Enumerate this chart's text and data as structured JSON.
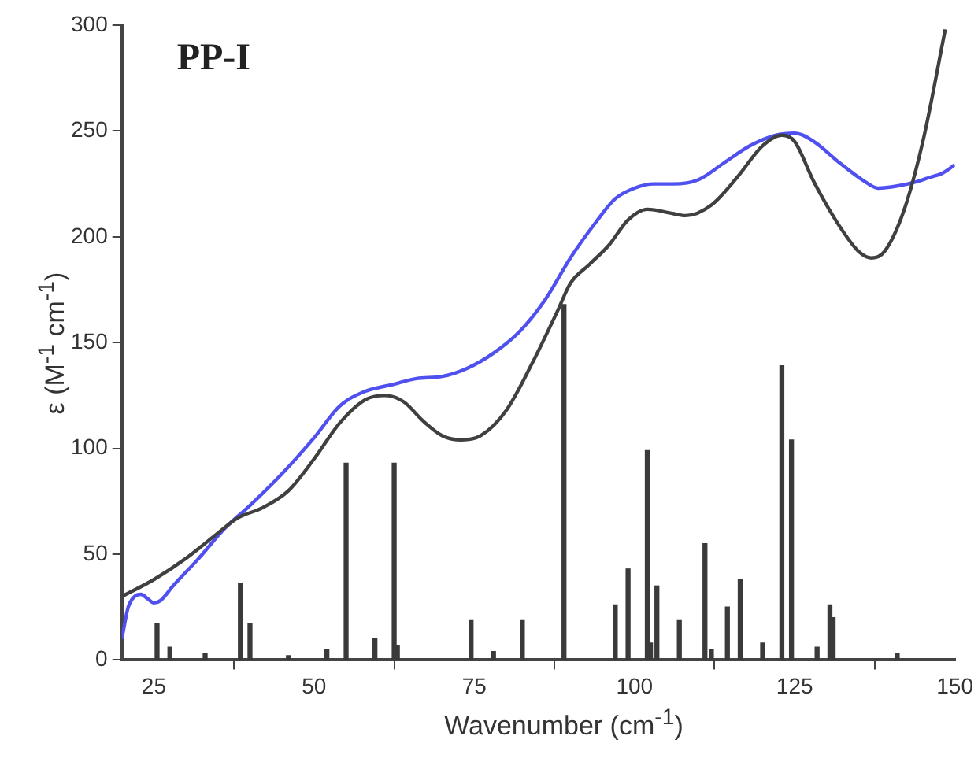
{
  "chart_data": {
    "type": "line",
    "title": "PP-I",
    "xlabel": "Wavenumber (cm$^{-1}$)",
    "ylabel": "ε (M$^{-1}$ cm$^{-1}$)",
    "xlim": [
      20,
      150
    ],
    "xticks": [
      25,
      50,
      75,
      100,
      125,
      150
    ],
    "ylim": [
      0,
      300
    ],
    "yticks": [
      0,
      50,
      100,
      150,
      200,
      250,
      300
    ],
    "grid": false,
    "legend": false,
    "marker": "none",
    "line_style": "solid",
    "series": [
      {
        "type": "bar",
        "color": "#3a3a3a",
        "x": [
          25.5,
          27.5,
          33,
          38.5,
          40,
          46,
          52,
          55,
          59.5,
          62.5,
          63,
          74.5,
          78,
          82.5,
          89,
          97,
          99,
          102,
          102.5,
          103.5,
          107,
          111,
          112,
          114.5,
          116.5,
          120,
          123,
          124.5,
          128.5,
          130.5,
          131,
          141
        ],
        "values": [
          17,
          6,
          3,
          36,
          17,
          2,
          5,
          93,
          10,
          93,
          7,
          19,
          4,
          19,
          168,
          26,
          43,
          99,
          8,
          35,
          19,
          55,
          5,
          25,
          38,
          8,
          139,
          104,
          6,
          26,
          20,
          3
        ]
      },
      {
        "color": "#404040",
        "x": [
          20,
          25,
          30,
          35,
          38,
          42,
          46,
          50,
          54,
          58,
          61,
          64,
          67,
          70,
          73,
          76,
          80,
          84,
          88,
          90,
          93,
          96,
          99,
          102,
          106,
          108,
          112,
          116,
          120,
          123,
          125,
          128,
          132,
          135,
          137,
          139,
          142,
          145,
          148.5
        ],
        "values": [
          30,
          38,
          48,
          60,
          67,
          72,
          80,
          95,
          112,
          123,
          125,
          122,
          113,
          106,
          104,
          106,
          118,
          140,
          165,
          178,
          187,
          196,
          208,
          213,
          211,
          210,
          215,
          228,
          243,
          248,
          245,
          226,
          205,
          193,
          190,
          193,
          212,
          245,
          298
        ]
      },
      {
        "color": "#5050f0",
        "x": [
          20,
          21,
          22,
          23,
          24,
          25,
          26,
          28,
          32,
          36,
          40,
          45,
          50,
          54,
          58,
          62,
          66,
          70,
          74,
          78,
          82,
          86,
          90,
          94,
          97,
          100,
          103,
          106,
          110,
          114,
          118,
          122,
          125,
          128,
          132,
          136,
          138,
          141,
          144,
          146,
          148,
          150
        ],
        "values": [
          10,
          25,
          30,
          31,
          29,
          27,
          28,
          35,
          48,
          62,
          73,
          88,
          105,
          120,
          127,
          130,
          133,
          134,
          138,
          145,
          155,
          170,
          190,
          207,
          218,
          223,
          225,
          225,
          227,
          235,
          243,
          248,
          249,
          245,
          235,
          226,
          223,
          224,
          226,
          228,
          230,
          234
        ]
      }
    ]
  }
}
